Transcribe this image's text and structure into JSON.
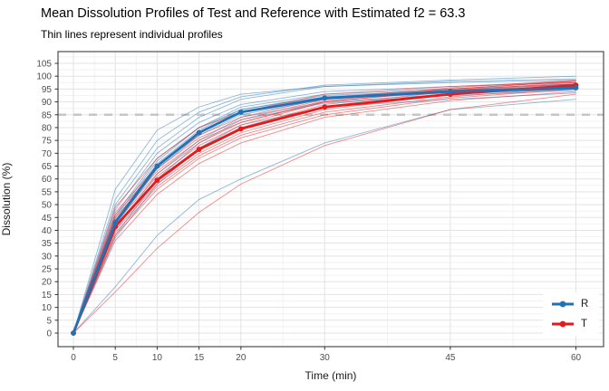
{
  "chart_data": {
    "type": "line",
    "title": "Mean Dissolution Profiles of Test and Reference with Estimated f2 = 63.3",
    "subtitle": "Thin lines represent individual profiles",
    "xlabel": "Time (min)",
    "ylabel": "Dissolution (%)",
    "f2_estimate": 63.3,
    "x": [
      0,
      5,
      10,
      15,
      20,
      30,
      45,
      60
    ],
    "x_ticks": [
      0,
      5,
      10,
      15,
      20,
      30,
      45,
      60
    ],
    "y_ticks": [
      0,
      5,
      10,
      15,
      20,
      25,
      30,
      35,
      40,
      45,
      50,
      55,
      60,
      65,
      70,
      75,
      80,
      85,
      90,
      95,
      100,
      105
    ],
    "xlim": [
      0,
      60
    ],
    "ylim": [
      0,
      105
    ],
    "grid": "on",
    "reference_line": {
      "y": 85,
      "style": "dashed",
      "color": "#c6c6c6"
    },
    "series": [
      {
        "name": "R",
        "role": "mean",
        "color": "#2171b5",
        "values": [
          0,
          43,
          65,
          78,
          86,
          91.5,
          94,
          95.5
        ]
      },
      {
        "name": "T",
        "role": "mean",
        "color": "#e41a1c",
        "values": [
          0,
          41.5,
          59.5,
          71.5,
          79.5,
          88,
          93,
          96.5
        ]
      }
    ],
    "individual_profiles": {
      "R": [
        [
          0,
          46,
          68,
          80,
          88,
          93,
          95,
          97
        ],
        [
          0,
          50,
          72,
          84,
          91,
          96,
          98,
          99
        ],
        [
          0,
          40,
          62,
          75,
          84,
          90,
          93,
          95
        ],
        [
          0,
          37,
          58,
          72,
          81,
          88,
          91,
          93.5
        ],
        [
          0,
          44,
          66,
          79,
          87,
          92.5,
          94.5,
          96
        ],
        [
          0,
          52,
          75,
          86,
          92,
          96.5,
          98.5,
          100
        ],
        [
          0,
          48,
          70,
          82,
          89,
          94,
          96,
          97.5
        ],
        [
          0,
          42,
          64,
          77,
          85,
          91,
          93.5,
          95
        ],
        [
          0,
          38,
          60,
          74,
          83,
          89.5,
          92.5,
          94.5
        ],
        [
          0,
          45,
          67,
          80,
          87,
          92,
          94.5,
          96
        ],
        [
          0,
          56,
          79,
          88,
          93,
          96,
          97.5,
          98.5
        ],
        [
          0,
          18,
          38,
          52,
          60,
          74,
          87,
          91
        ]
      ],
      "T": [
        [
          0,
          44,
          62,
          74,
          82,
          90,
          94.5,
          97.5
        ],
        [
          0,
          47,
          65,
          77,
          84,
          91.5,
          95.5,
          98.5
        ],
        [
          0,
          39,
          57,
          69,
          77,
          86,
          92,
          95.5
        ],
        [
          0,
          36,
          54,
          66,
          74,
          84,
          90.5,
          94
        ],
        [
          0,
          42,
          60,
          72,
          80,
          89,
          94,
          97
        ],
        [
          0,
          49,
          68,
          80,
          86,
          93,
          96,
          98
        ],
        [
          0,
          43,
          61,
          73,
          81,
          90,
          94.5,
          97
        ],
        [
          0,
          38,
          56,
          68,
          76,
          85,
          91.5,
          95
        ],
        [
          0,
          45,
          63,
          75,
          82,
          90.5,
          95,
          98
        ],
        [
          0,
          40,
          58,
          70,
          78,
          87,
          93,
          96.5
        ],
        [
          0,
          46,
          64,
          76,
          83,
          91,
          95,
          98
        ],
        [
          0,
          16,
          33,
          47,
          58,
          73,
          87,
          93
        ]
      ]
    },
    "legend": {
      "position": "inside bottom-right",
      "items": [
        {
          "label": "R",
          "color": "#2171b5"
        },
        {
          "label": "T",
          "color": "#e41a1c"
        }
      ]
    }
  }
}
